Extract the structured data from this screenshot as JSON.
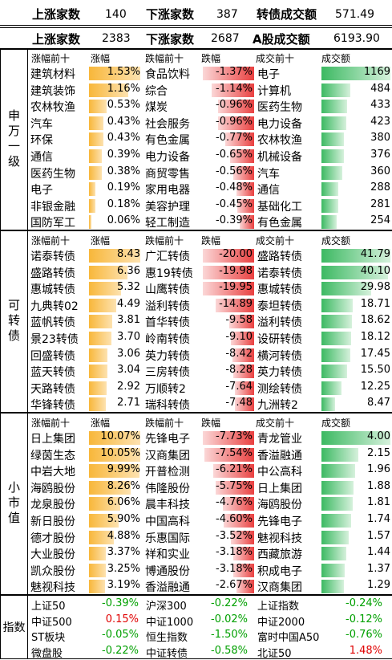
{
  "summary": [
    {
      "up_label": "上涨家数",
      "up_value": "140",
      "down_label": "下涨家数",
      "down_value": "387",
      "turnover_label": "转债成交额",
      "turnover_value": "571.49"
    },
    {
      "up_label": "上涨家数",
      "up_value": "2383",
      "down_label": "下涨家数",
      "down_value": "2687",
      "turnover_label": "A股成交额",
      "turnover_value": "6193.90"
    }
  ],
  "sections": [
    {
      "label": "申万一级",
      "headers": [
        "涨幅前十",
        "涨幅",
        "跌幅前十",
        "跌幅",
        "成交前十",
        "成交额"
      ],
      "rows": [
        {
          "gain_name": "建筑材料",
          "gain": "1.53%",
          "gain_pct": 1.53,
          "loss_name": "食品饮料",
          "loss": "-1.37%",
          "loss_pct": 1.37,
          "amt_name": "电子",
          "amt": "1169",
          "amt_val": 1169
        },
        {
          "gain_name": "建筑装饰",
          "gain": "1.16%",
          "gain_pct": 1.16,
          "loss_name": "综合",
          "loss": "-1.14%",
          "loss_pct": 1.14,
          "amt_name": "计算机",
          "amt": "484",
          "amt_val": 484
        },
        {
          "gain_name": "农林牧渔",
          "gain": "0.53%",
          "gain_pct": 0.53,
          "loss_name": "煤炭",
          "loss": "-0.96%",
          "loss_pct": 0.96,
          "amt_name": "医药生物",
          "amt": "433",
          "amt_val": 433
        },
        {
          "gain_name": "汽车",
          "gain": "0.43%",
          "gain_pct": 0.43,
          "loss_name": "社会服务",
          "loss": "-0.96%",
          "loss_pct": 0.96,
          "amt_name": "电力设备",
          "amt": "423",
          "amt_val": 423
        },
        {
          "gain_name": "环保",
          "gain": "0.43%",
          "gain_pct": 0.43,
          "loss_name": "有色金属",
          "loss": "-0.77%",
          "loss_pct": 0.77,
          "amt_name": "农林牧渔",
          "amt": "380",
          "amt_val": 380
        },
        {
          "gain_name": "通信",
          "gain": "0.39%",
          "gain_pct": 0.39,
          "loss_name": "电力设备",
          "loss": "-0.65%",
          "loss_pct": 0.65,
          "amt_name": "机械设备",
          "amt": "376",
          "amt_val": 376
        },
        {
          "gain_name": "医药生物",
          "gain": "0.38%",
          "gain_pct": 0.38,
          "loss_name": "商贸零售",
          "loss": "-0.56%",
          "loss_pct": 0.56,
          "amt_name": "汽车",
          "amt": "360",
          "amt_val": 360
        },
        {
          "gain_name": "电子",
          "gain": "0.19%",
          "gain_pct": 0.19,
          "loss_name": "家用电器",
          "loss": "-0.48%",
          "loss_pct": 0.48,
          "amt_name": "通信",
          "amt": "288",
          "amt_val": 288
        },
        {
          "gain_name": "非银金融",
          "gain": "0.18%",
          "gain_pct": 0.18,
          "loss_name": "美容护理",
          "loss": "-0.45%",
          "loss_pct": 0.45,
          "amt_name": "基础化工",
          "amt": "281",
          "amt_val": 281
        },
        {
          "gain_name": "国防军工",
          "gain": "0.06%",
          "gain_pct": 0.06,
          "loss_name": "轻工制造",
          "loss": "-0.39%",
          "loss_pct": 0.39,
          "amt_name": "有色金属",
          "amt": "254",
          "amt_val": 254
        }
      ]
    },
    {
      "label": "可转债",
      "headers": [
        "涨幅前十",
        "涨幅",
        "跌幅前十",
        "跌幅",
        "成交前十",
        "成交额"
      ],
      "rows": [
        {
          "gain_name": "诺泰转债",
          "gain": "8.43",
          "gain_pct": 8.43,
          "loss_name": "广汇转债",
          "loss": "-20.00",
          "loss_pct": 20.0,
          "amt_name": "盛路转债",
          "amt": "41.79",
          "amt_val": 41.79
        },
        {
          "gain_name": "盛路转债",
          "gain": "6.36",
          "gain_pct": 6.36,
          "loss_name": "惠19转债",
          "loss": "-19.98",
          "loss_pct": 19.98,
          "amt_name": "诺泰转债",
          "amt": "40.10",
          "amt_val": 40.1
        },
        {
          "gain_name": "惠城转债",
          "gain": "5.32",
          "gain_pct": 5.32,
          "loss_name": "山鹰转债",
          "loss": "-19.95",
          "loss_pct": 19.95,
          "amt_name": "惠城转债",
          "amt": "29.98",
          "amt_val": 29.98
        },
        {
          "gain_name": "九典转02",
          "gain": "4.49",
          "gain_pct": 4.49,
          "loss_name": "溢利转债",
          "loss": "-14.89",
          "loss_pct": 14.89,
          "amt_name": "泰坦转债",
          "amt": "18.71",
          "amt_val": 18.71
        },
        {
          "gain_name": "蓝帆转债",
          "gain": "3.81",
          "gain_pct": 3.81,
          "loss_name": "首华转债",
          "loss": "-9.58",
          "loss_pct": 9.58,
          "amt_name": "溢利转债",
          "amt": "18.62",
          "amt_val": 18.62
        },
        {
          "gain_name": "景23转债",
          "gain": "3.70",
          "gain_pct": 3.7,
          "loss_name": "岭南转债",
          "loss": "-9.10",
          "loss_pct": 9.1,
          "amt_name": "设研转债",
          "amt": "18.12",
          "amt_val": 18.12
        },
        {
          "gain_name": "回盛转债",
          "gain": "3.06",
          "gain_pct": 3.06,
          "loss_name": "英力转债",
          "loss": "-8.42",
          "loss_pct": 8.42,
          "amt_name": "横河转债",
          "amt": "17.45",
          "amt_val": 17.45
        },
        {
          "gain_name": "蓝天转债",
          "gain": "3.04",
          "gain_pct": 3.04,
          "loss_name": "三房转债",
          "loss": "-8.28",
          "loss_pct": 8.28,
          "amt_name": "英力转债",
          "amt": "15.50",
          "amt_val": 15.5
        },
        {
          "gain_name": "天路转债",
          "gain": "2.92",
          "gain_pct": 2.92,
          "loss_name": "万顺转2",
          "loss": "-7.64",
          "loss_pct": 7.64,
          "amt_name": "测绘转债",
          "amt": "12.25",
          "amt_val": 12.25
        },
        {
          "gain_name": "华锋转债",
          "gain": "2.71",
          "gain_pct": 2.71,
          "loss_name": "瑞科转债",
          "loss": "-7.48",
          "loss_pct": 7.48,
          "amt_name": "九洲转2",
          "amt": "8.47",
          "amt_val": 8.47
        }
      ]
    },
    {
      "label": "小市值",
      "headers": [
        "涨幅前十",
        "涨幅",
        "跌幅前十",
        "跌幅",
        "成交前十",
        "成交额"
      ],
      "rows": [
        {
          "gain_name": "日上集团",
          "gain": "10.07%",
          "gain_pct": 10.07,
          "loss_name": "先锋电子",
          "loss": "-7.73%",
          "loss_pct": 7.73,
          "amt_name": "青龙管业",
          "amt": "4.00",
          "amt_val": 4.0
        },
        {
          "gain_name": "绿茵生态",
          "gain": "10.05%",
          "gain_pct": 10.05,
          "loss_name": "汉商集团",
          "loss": "-7.54%",
          "loss_pct": 7.54,
          "amt_name": "香溢融通",
          "amt": "2.15",
          "amt_val": 2.15
        },
        {
          "gain_name": "中岩大地",
          "gain": "9.99%",
          "gain_pct": 9.99,
          "loss_name": "开普检测",
          "loss": "-6.21%",
          "loss_pct": 6.21,
          "amt_name": "中公高科",
          "amt": "1.96",
          "amt_val": 1.96
        },
        {
          "gain_name": "海鸥股份",
          "gain": "8.26%",
          "gain_pct": 8.26,
          "loss_name": "伟隆股份",
          "loss": "-5.75%",
          "loss_pct": 5.75,
          "amt_name": "日上集团",
          "amt": "1.88",
          "amt_val": 1.88
        },
        {
          "gain_name": "龙泉股份",
          "gain": "6.06%",
          "gain_pct": 6.06,
          "loss_name": "晨丰科技",
          "loss": "-4.76%",
          "loss_pct": 4.76,
          "amt_name": "海鸥股份",
          "amt": "1.81",
          "amt_val": 1.81
        },
        {
          "gain_name": "新日股份",
          "gain": "5.90%",
          "gain_pct": 5.9,
          "loss_name": "中国高科",
          "loss": "-4.60%",
          "loss_pct": 4.6,
          "amt_name": "先锋电子",
          "amt": "1.74",
          "amt_val": 1.74
        },
        {
          "gain_name": "德才股份",
          "gain": "4.88%",
          "gain_pct": 4.88,
          "loss_name": "乐惠国际",
          "loss": "-3.52%",
          "loss_pct": 3.52,
          "amt_name": "魅视科技",
          "amt": "1.57",
          "amt_val": 1.57
        },
        {
          "gain_name": "大业股份",
          "gain": "3.37%",
          "gain_pct": 3.37,
          "loss_name": "祥和实业",
          "loss": "-3.18%",
          "loss_pct": 3.18,
          "amt_name": "西藏旅游",
          "amt": "1.44",
          "amt_val": 1.44
        },
        {
          "gain_name": "凯众股份",
          "gain": "3.25%",
          "gain_pct": 3.25,
          "loss_name": "博通股份",
          "loss": "-3.18%",
          "loss_pct": 3.18,
          "amt_name": "积成电子",
          "amt": "1.37",
          "amt_val": 1.37
        },
        {
          "gain_name": "魅视科技",
          "gain": "3.19%",
          "gain_pct": 3.19,
          "loss_name": "香溢融通",
          "loss": "-2.67%",
          "loss_pct": 2.67,
          "amt_name": "汉商集团",
          "amt": "1.29",
          "amt_val": 1.29
        }
      ]
    }
  ],
  "indices": {
    "label": "指数",
    "rows": [
      [
        {
          "name": "上证50",
          "value": "-0.39%",
          "sign": "neg"
        },
        {
          "name": "沪深300",
          "value": "-0.22%",
          "sign": "neg"
        },
        {
          "name": "上证指数",
          "value": "-0.24%",
          "sign": "neg"
        }
      ],
      [
        {
          "name": "中证500",
          "value": "0.15%",
          "sign": "pos"
        },
        {
          "name": "中证1000",
          "value": "-0.02%",
          "sign": "neg"
        },
        {
          "name": "中证2000",
          "value": "-0.12%",
          "sign": "neg"
        }
      ],
      [
        {
          "name": "ST板块",
          "value": "-0.05%",
          "sign": "neg"
        },
        {
          "name": "恒生指数",
          "value": "-1.50%",
          "sign": "neg"
        },
        {
          "name": "富时中国A50",
          "value": "-0.76%",
          "sign": "neg"
        }
      ],
      [
        {
          "name": "微盘股",
          "value": "-0.22%",
          "sign": "neg"
        },
        {
          "name": "中证转债",
          "value": "-0.58%",
          "sign": "neg"
        },
        {
          "name": "北证50",
          "value": "1.48%",
          "sign": "pos"
        }
      ]
    ]
  },
  "colors": {
    "gain_bar": "#f8b73a",
    "loss_bar": "#e94040",
    "amount_bar": "#3cb962",
    "positive": "#e00000",
    "negative": "#00a000"
  }
}
